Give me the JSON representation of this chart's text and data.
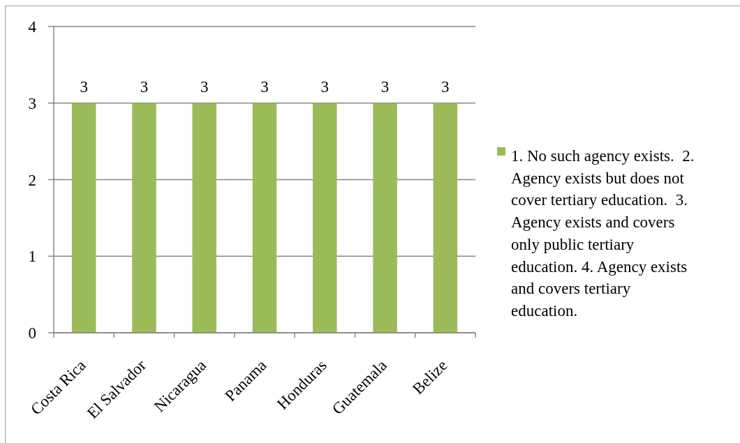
{
  "chart_data": {
    "type": "bar",
    "categories": [
      "Costa Rica",
      "El Salvador",
      "Nicaragua",
      "Panama",
      "Honduras",
      "Guatemala",
      "Belize"
    ],
    "series": [
      {
        "name": "1. No such agency exists.  2. Agency exists but does not cover tertiary education.  3. Agency exists and covers only public tertiary education. 4. Agency exists and covers tertiary education.",
        "color": "#9bbb59",
        "values": [
          3,
          3,
          3,
          3,
          3,
          3,
          3
        ]
      }
    ],
    "ylim": [
      0,
      4
    ],
    "yticks": [
      0,
      1,
      2,
      3,
      4
    ],
    "grid": "y",
    "legend": "right",
    "data_labels": true
  }
}
